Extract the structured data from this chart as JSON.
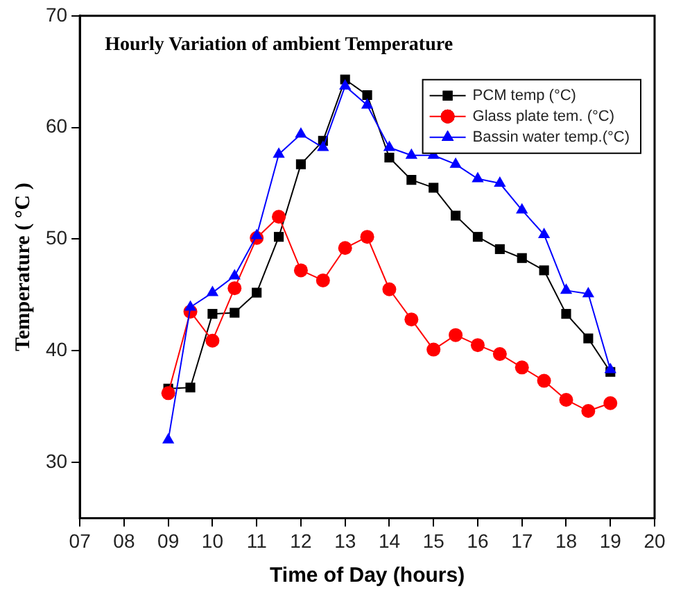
{
  "chart_data": {
    "type": "line",
    "title": "Hourly Variation of ambient Temperature",
    "xlabel": "Time of Day (hours)",
    "ylabel": "Temperature ( °C )",
    "x": [
      9,
      9.5,
      10,
      10.5,
      11,
      11.5,
      12,
      12.5,
      13,
      13.5,
      14,
      14.5,
      15,
      15.5,
      16,
      16.5,
      17,
      17.5,
      18,
      18.5,
      19
    ],
    "series": [
      {
        "name": "PCM temp (°C)",
        "color": "#000000",
        "marker": "square",
        "values": [
          36.6,
          36.7,
          43.3,
          43.4,
          45.2,
          50.2,
          56.7,
          58.8,
          64.3,
          62.9,
          57.3,
          55.3,
          54.6,
          52.1,
          50.2,
          49.1,
          48.3,
          47.2,
          43.3,
          41.1,
          38.1
        ]
      },
      {
        "name": "Glass plate tem. (°C)",
        "color": "#ff0000",
        "marker": "circle",
        "values": [
          36.2,
          43.5,
          40.9,
          45.6,
          50.1,
          52.0,
          47.2,
          46.3,
          49.2,
          50.2,
          45.5,
          42.8,
          40.1,
          41.4,
          40.5,
          39.7,
          38.5,
          37.3,
          35.6,
          34.6,
          35.3
        ]
      },
      {
        "name": "Bassin water temp.(°C)",
        "color": "#0000ff",
        "marker": "triangle",
        "values": [
          32.0,
          43.9,
          45.2,
          46.7,
          50.3,
          57.6,
          59.4,
          58.2,
          63.7,
          62.0,
          58.2,
          57.5,
          57.5,
          56.7,
          55.4,
          55.0,
          52.6,
          50.4,
          45.4,
          45.1,
          38.3
        ]
      }
    ],
    "xlim": [
      7,
      20
    ],
    "xticks": [
      {
        "value": 7,
        "label": "07"
      },
      {
        "value": 8,
        "label": "08"
      },
      {
        "value": 9,
        "label": "09"
      },
      10,
      11,
      12,
      13,
      14,
      15,
      16,
      17,
      18,
      19,
      20
    ],
    "ylim": [
      25,
      70
    ],
    "yticks": [
      30,
      40,
      50,
      60,
      70
    ],
    "grid": false,
    "legend": "top right"
  }
}
